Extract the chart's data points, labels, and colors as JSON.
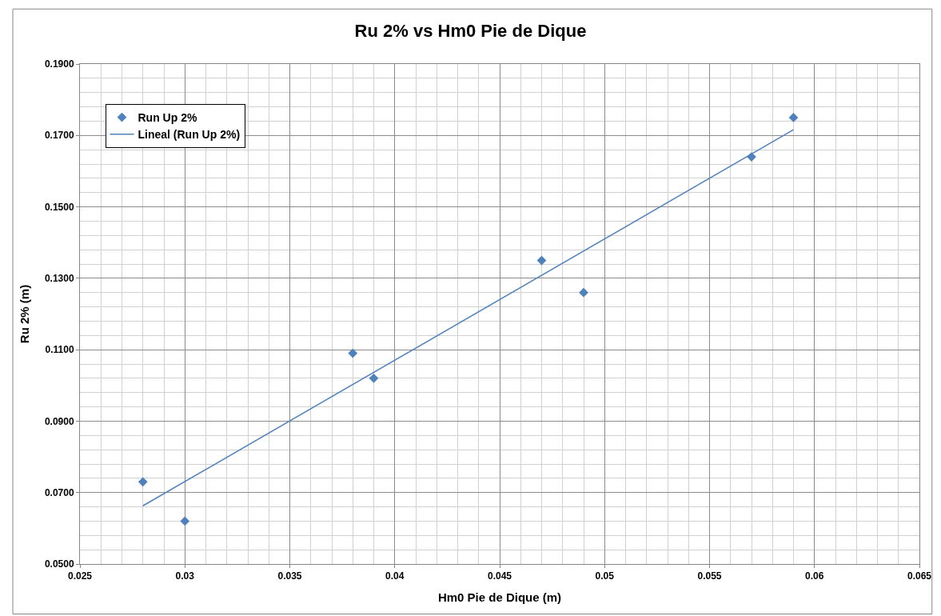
{
  "chart_data": {
    "type": "scatter",
    "title": "Ru 2% vs Hm0 Pie de Dique",
    "xlabel": "Hm0 Pie de Dique (m)",
    "ylabel": "Ru 2% (m)",
    "series": [
      {
        "name": "Run Up 2%",
        "color": "#4f81bd",
        "marker": "diamond",
        "x": [
          0.028,
          0.03,
          0.038,
          0.039,
          0.047,
          0.049,
          0.057,
          0.059
        ],
        "values": [
          0.073,
          0.062,
          0.109,
          0.102,
          0.135,
          0.126,
          0.164,
          0.175
        ]
      },
      {
        "name": "Lineal (Run Up 2%)",
        "type": "line",
        "color": "#4f81bd",
        "marker": "none",
        "line_style": "solid",
        "x": [
          0.028,
          0.059
        ],
        "values": [
          0.0663,
          0.1716
        ]
      }
    ],
    "xlim": [
      0.025,
      0.065
    ],
    "xticks": [
      0.025,
      0.03,
      0.035,
      0.04,
      0.045,
      0.05,
      0.055,
      0.06,
      0.065
    ],
    "ylim": [
      0.05,
      0.19
    ],
    "yticks": [
      {
        "value": 0.05,
        "label": "0.0500"
      },
      {
        "value": 0.07,
        "label": "0.0700"
      },
      {
        "value": 0.09,
        "label": "0.0900"
      },
      {
        "value": 0.11,
        "label": "0.1100"
      },
      {
        "value": 0.13,
        "label": "0.1300"
      },
      {
        "value": 0.15,
        "label": "0.1500"
      },
      {
        "value": 0.17,
        "label": "0.1700"
      },
      {
        "value": 0.19,
        "label": "0.1900"
      }
    ],
    "grid": true,
    "legend": "top left"
  }
}
